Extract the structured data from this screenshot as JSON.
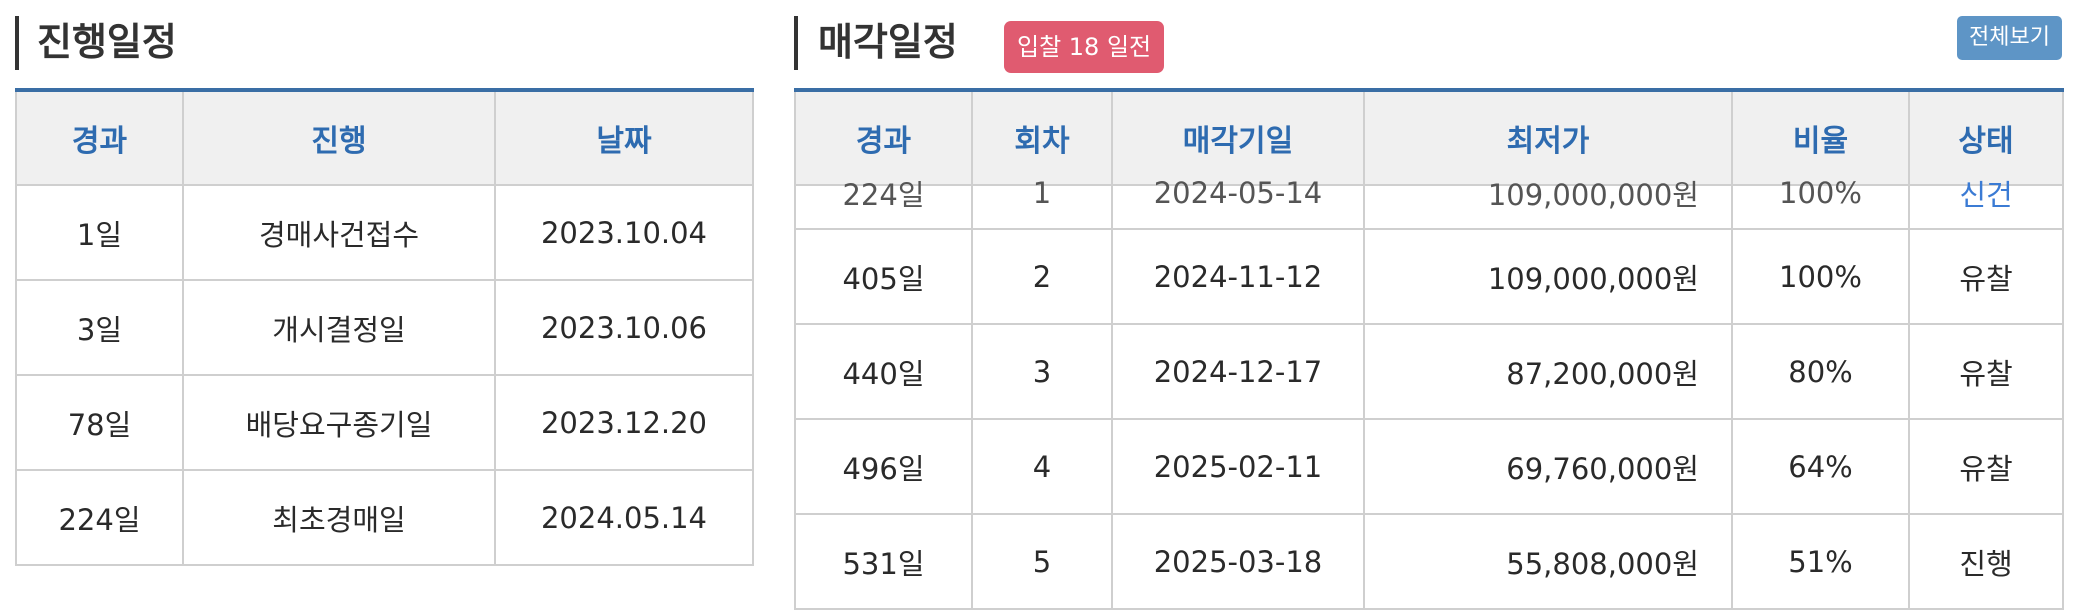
{
  "progress": {
    "title": "진행일정",
    "columns": [
      "경과",
      "진행",
      "날짜"
    ],
    "rows": [
      {
        "elapsed": "1일",
        "event": "경매사건접수",
        "date": "2023.10.04"
      },
      {
        "elapsed": "3일",
        "event": "개시결정일",
        "date": "2023.10.06"
      },
      {
        "elapsed": "78일",
        "event": "배당요구종기일",
        "date": "2023.12.20"
      },
      {
        "elapsed": "224일",
        "event": "최초경매일",
        "date": "2024.05.14"
      }
    ]
  },
  "sale": {
    "title": "매각일정",
    "badge": "입찰 18 일전",
    "view_all": "전체보기",
    "columns": [
      "경과",
      "회차",
      "매각기일",
      "최저가",
      "비율",
      "상태"
    ],
    "partial_row": {
      "elapsed": "224일",
      "round": "1",
      "date": "2024-05-14",
      "price": "109,000,000원",
      "ratio": "100%",
      "status": "신건"
    },
    "rows": [
      {
        "elapsed": "405일",
        "round": "2",
        "date": "2024-11-12",
        "price": "109,000,000원",
        "ratio": "100%",
        "status": "유찰"
      },
      {
        "elapsed": "440일",
        "round": "3",
        "date": "2024-12-17",
        "price": "87,200,000원",
        "ratio": "80%",
        "status": "유찰"
      },
      {
        "elapsed": "496일",
        "round": "4",
        "date": "2025-02-11",
        "price": "69,760,000원",
        "ratio": "64%",
        "status": "유찰"
      },
      {
        "elapsed": "531일",
        "round": "5",
        "date": "2025-03-18",
        "price": "55,808,000원",
        "ratio": "51%",
        "status": "진행"
      }
    ]
  }
}
